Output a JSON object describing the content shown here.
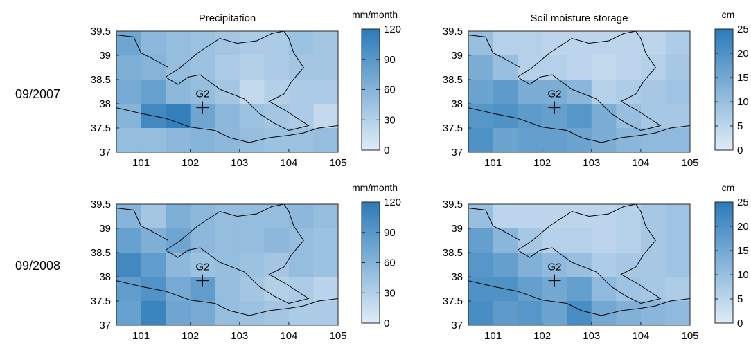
{
  "figure": {
    "row_labels": [
      "09/2007",
      "09/2008"
    ]
  },
  "chart_data": [
    {
      "type": "heatmap",
      "title": "Precipitation",
      "colorbar": {
        "unit": "mm/month",
        "ticks": [
          0,
          30,
          60,
          90,
          120
        ],
        "range": [
          0,
          120
        ]
      },
      "xlim": [
        100.5,
        105
      ],
      "ylim": [
        37,
        39.5
      ],
      "xticks": [
        101,
        102,
        103,
        104,
        105
      ],
      "yticks": [
        37,
        37.5,
        38,
        38.5,
        39,
        39.5
      ],
      "station": {
        "label": "G2",
        "lon": 102.25,
        "lat": 37.92
      },
      "cell_size": 0.5,
      "grid": [
        [
          75,
          55,
          50,
          45,
          40,
          35,
          35,
          45,
          40
        ],
        [
          65,
          60,
          50,
          45,
          35,
          30,
          35,
          40,
          40
        ],
        [
          70,
          80,
          55,
          50,
          40,
          20,
          30,
          35,
          35
        ],
        [
          60,
          105,
          115,
          75,
          55,
          45,
          40,
          35,
          20
        ],
        [
          50,
          50,
          55,
          60,
          55,
          50,
          45,
          45,
          50
        ],
        [
          60,
          45,
          50,
          70,
          70,
          60,
          55,
          50,
          50
        ]
      ]
    },
    {
      "type": "heatmap",
      "title": "Soil moisture storage",
      "colorbar": {
        "unit": "cm",
        "ticks": [
          0,
          5,
          10,
          15,
          20,
          25
        ],
        "range": [
          0,
          25
        ]
      },
      "xlim": [
        100.5,
        105
      ],
      "ylim": [
        37,
        39.5
      ],
      "xticks": [
        101,
        102,
        103,
        104,
        105
      ],
      "yticks": [
        37,
        37.5,
        38,
        38.5,
        39,
        39.5
      ],
      "station": {
        "label": "G2",
        "lon": 102.25,
        "lat": 37.92
      },
      "cell_size": 0.5,
      "grid": [
        [
          10,
          6,
          6,
          5,
          5,
          5,
          5,
          5,
          7
        ],
        [
          14,
          10,
          6,
          6,
          5,
          4,
          5,
          6,
          8
        ],
        [
          16,
          18,
          14,
          14,
          12,
          6,
          7,
          8,
          9
        ],
        [
          19,
          20,
          18,
          17,
          19,
          14,
          10,
          8,
          8
        ],
        [
          20,
          16,
          17,
          17,
          16,
          14,
          12,
          11,
          11
        ],
        [
          23,
          18,
          22,
          22,
          18,
          21,
          17,
          12,
          12
        ]
      ]
    },
    {
      "type": "heatmap",
      "title": "",
      "colorbar": {
        "unit": "mm/month",
        "ticks": [
          0,
          30,
          60,
          90,
          120
        ],
        "range": [
          0,
          120
        ]
      },
      "xlim": [
        100.5,
        105
      ],
      "ylim": [
        37,
        39.5
      ],
      "xticks": [
        101,
        102,
        103,
        104,
        105
      ],
      "yticks": [
        37,
        37.5,
        38,
        38.5,
        39,
        39.5
      ],
      "station": {
        "label": "G2",
        "lon": 102.25,
        "lat": 37.92
      },
      "cell_size": 0.5,
      "grid": [
        [
          60,
          40,
          65,
          55,
          50,
          50,
          50,
          55,
          50
        ],
        [
          80,
          65,
          75,
          55,
          50,
          50,
          55,
          50,
          45
        ],
        [
          105,
          85,
          55,
          45,
          50,
          45,
          40,
          50,
          45
        ],
        [
          85,
          95,
          70,
          85,
          50,
          40,
          30,
          35,
          25
        ],
        [
          80,
          110,
          75,
          70,
          50,
          45,
          40,
          35,
          35
        ],
        [
          55,
          55,
          60,
          80,
          60,
          45,
          45,
          75,
          55
        ]
      ]
    },
    {
      "type": "heatmap",
      "title": "",
      "colorbar": {
        "unit": "cm",
        "ticks": [
          0,
          5,
          10,
          15,
          20,
          25
        ],
        "range": [
          0,
          25
        ]
      },
      "xlim": [
        100.5,
        105
      ],
      "ylim": [
        37,
        39.5
      ],
      "xticks": [
        101,
        102,
        103,
        104,
        105
      ],
      "yticks": [
        37,
        37.5,
        38,
        38.5,
        39,
        39.5
      ],
      "station": {
        "label": "G2",
        "lon": 102.25,
        "lat": 37.92
      },
      "cell_size": 0.5,
      "grid": [
        [
          10,
          5,
          5,
          5,
          5,
          5,
          6,
          8,
          9
        ],
        [
          17,
          12,
          8,
          6,
          6,
          5,
          6,
          8,
          9
        ],
        [
          19,
          17,
          13,
          11,
          10,
          7,
          8,
          8,
          9
        ],
        [
          20,
          20,
          17,
          15,
          17,
          11,
          9,
          8,
          7
        ],
        [
          21,
          18,
          19,
          16,
          21,
          15,
          13,
          12,
          11
        ],
        [
          24,
          16,
          21,
          19,
          18,
          19,
          17,
          14,
          13
        ]
      ]
    }
  ]
}
